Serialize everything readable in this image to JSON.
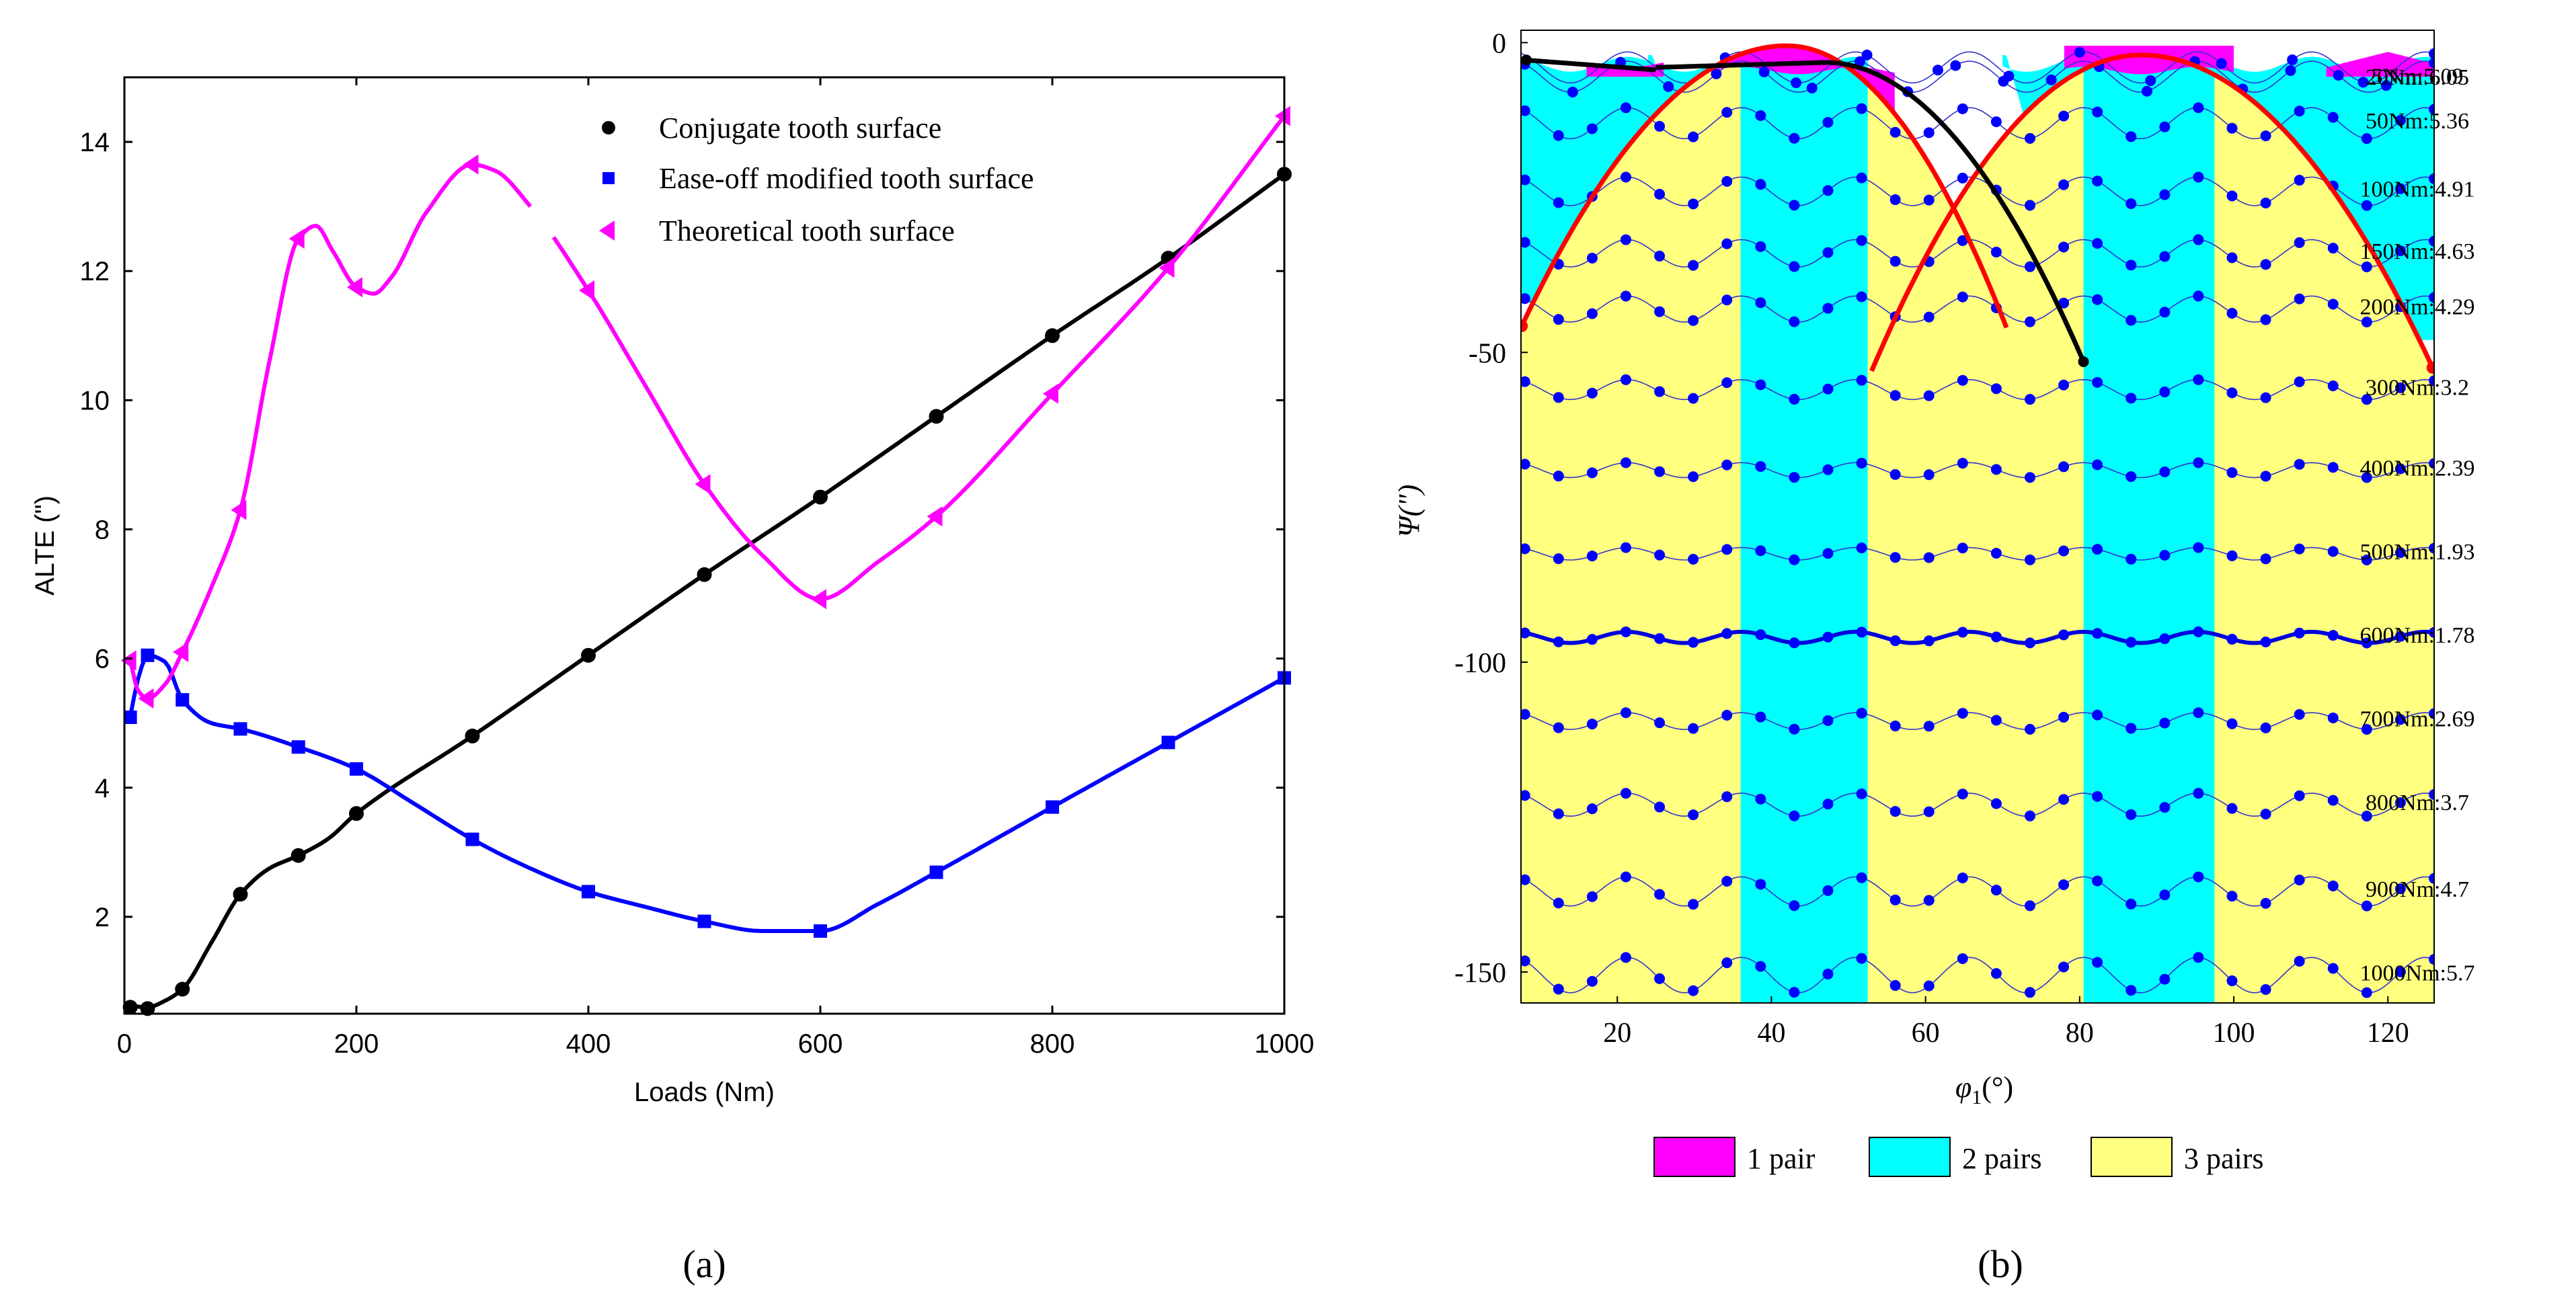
{
  "chart_data": [
    {
      "panel": "a",
      "type": "line",
      "caption": "(a)",
      "xlabel": "Loads (Nm)",
      "ylabel": "ALTE (\")",
      "xlim": [
        0,
        1000
      ],
      "ylim": [
        0.5,
        15
      ],
      "xticks": [
        0,
        200,
        400,
        600,
        800,
        1000
      ],
      "yticks": [
        2,
        4,
        6,
        8,
        10,
        12,
        14
      ],
      "legend_position": "top-right",
      "colors": {
        "conjugate": "#000000",
        "easeoff": "#0000ff",
        "theoretical": "#ff00ff"
      },
      "series": [
        {
          "name": "Conjugate tooth surface",
          "marker": "circle",
          "x": [
            5,
            20,
            50,
            100,
            150,
            200,
            300,
            400,
            500,
            600,
            700,
            800,
            900,
            1000
          ],
          "y": [
            0.6,
            0.58,
            0.88,
            2.35,
            2.95,
            3.6,
            4.8,
            6.05,
            7.3,
            8.5,
            9.75,
            11.0,
            12.2,
            13.5
          ],
          "curve_x": [
            5,
            20,
            35,
            50,
            75,
            100,
            125,
            150,
            175,
            200,
            300,
            400,
            500,
            600,
            700,
            800,
            900,
            1000
          ],
          "curve_y": [
            0.62,
            0.6,
            0.7,
            0.88,
            1.6,
            2.35,
            2.75,
            2.95,
            3.2,
            3.6,
            4.8,
            6.05,
            7.3,
            8.5,
            9.75,
            11.0,
            12.2,
            13.5
          ]
        },
        {
          "name": "Ease-off modified tooth surface",
          "marker": "square",
          "x": [
            5,
            20,
            50,
            100,
            150,
            200,
            300,
            400,
            500,
            600,
            700,
            800,
            900,
            1000
          ],
          "y": [
            5.09,
            6.05,
            5.36,
            4.91,
            4.63,
            4.29,
            3.2,
            2.39,
            1.93,
            1.78,
            2.69,
            3.7,
            4.7,
            5.7
          ],
          "curve_x": [
            5,
            12,
            20,
            35,
            50,
            75,
            100,
            150,
            200,
            250,
            300,
            350,
            400,
            450,
            500,
            550,
            600,
            650,
            700,
            800,
            900,
            1000
          ],
          "curve_y": [
            5.09,
            5.7,
            6.05,
            5.95,
            5.36,
            5.0,
            4.91,
            4.63,
            4.29,
            3.75,
            3.2,
            2.75,
            2.39,
            2.15,
            1.93,
            1.78,
            1.78,
            2.2,
            2.69,
            3.7,
            4.7,
            5.7
          ]
        },
        {
          "name": "Theoretical tooth surface",
          "marker": "triangle-left",
          "x": [
            5,
            20,
            50,
            100,
            150,
            200,
            300,
            400,
            500,
            600,
            700,
            800,
            900,
            1000
          ],
          "y": [
            5.97,
            5.38,
            6.1,
            8.3,
            12.5,
            11.75,
            13.65,
            11.7,
            8.7,
            6.92,
            8.2,
            10.1,
            12.05,
            14.4
          ],
          "curve_x": [
            5,
            12,
            20,
            35,
            50,
            75,
            100,
            125,
            150,
            165,
            180,
            200,
            215,
            230,
            260,
            300,
            320,
            350,
            400,
            450,
            500,
            550,
            600,
            650,
            700,
            800,
            900,
            1000
          ],
          "curve_y": [
            5.97,
            5.5,
            5.38,
            5.6,
            6.1,
            7.1,
            8.3,
            10.6,
            12.5,
            12.7,
            12.3,
            11.75,
            11.65,
            11.9,
            12.9,
            13.65,
            13.55,
            13.0,
            11.7,
            10.2,
            8.7,
            7.6,
            6.92,
            7.5,
            8.2,
            10.1,
            12.05,
            14.4
          ],
          "gap_x": [
            350,
            370
          ]
        }
      ]
    },
    {
      "panel": "b",
      "type": "area",
      "caption": "(b)",
      "xlabel_var": "φ",
      "xlabel_sub": "1",
      "xlabel_unit": "(°)",
      "ylabel": "Ψ(\")",
      "xlim": [
        7.5,
        126
      ],
      "ylim": [
        -155,
        2
      ],
      "xticks": [
        20,
        40,
        60,
        80,
        100,
        120
      ],
      "yticks": [
        0,
        -50,
        -100,
        -150
      ],
      "legend_position": "bottom",
      "legend": [
        {
          "label": "1 pair",
          "color": "#ff00ff"
        },
        {
          "label": "2 pairs",
          "color": "#00ffff"
        },
        {
          "label": "3 pairs",
          "color": "#ffff80"
        }
      ],
      "contact_zones": [
        {
          "pairs": 2,
          "x": [
            7.5,
            36
          ]
        },
        {
          "pairs": 3,
          "x": [
            7.5,
            36
          ]
        },
        {
          "pairs": 2,
          "x": [
            36,
            52.5
          ]
        },
        {
          "pairs": 3,
          "x": [
            52.5,
            80.5
          ]
        },
        {
          "pairs": 2,
          "x": [
            80.5,
            97.5
          ]
        },
        {
          "pairs": 3,
          "x": [
            97.5,
            126
          ]
        }
      ],
      "load_curves": [
        {
          "label": "5Nm:5.09",
          "load": 5,
          "offset": -4.0,
          "amp": 2.5,
          "dots": 11
        },
        {
          "label": "20Nm:6.05",
          "load": 20,
          "offset": -5.5,
          "amp": 2.5,
          "dots": 20
        },
        {
          "label": "50Nm:5.36",
          "load": 50,
          "offset": -13.0,
          "amp": 2.5,
          "dots": 28
        },
        {
          "label": "100Nm:4.91",
          "load": 100,
          "offset": -24.0,
          "amp": 2.3,
          "dots": 28
        },
        {
          "label": "150Nm:4.63",
          "load": 150,
          "offset": -34.0,
          "amp": 2.2,
          "dots": 28
        },
        {
          "label": "200Nm:4.29",
          "load": 200,
          "offset": -43.0,
          "amp": 2.1,
          "dots": 28
        },
        {
          "label": "300Nm:3.2",
          "load": 300,
          "offset": -56.0,
          "amp": 1.6,
          "dots": 28
        },
        {
          "label": "400Nm:2.39",
          "load": 400,
          "offset": -69.0,
          "amp": 1.2,
          "dots": 28
        },
        {
          "label": "500Nm:1.93",
          "load": 500,
          "offset": -82.5,
          "amp": 1.0,
          "dots": 28
        },
        {
          "label": "600Nm:1.78",
          "load": 600,
          "offset": -96.0,
          "amp": 0.9,
          "dots": 28,
          "highlight": true
        },
        {
          "label": "700Nm:2.69",
          "load": 700,
          "offset": -109.5,
          "amp": 1.35,
          "dots": 28
        },
        {
          "label": "800Nm:3.7",
          "load": 800,
          "offset": -123.0,
          "amp": 1.85,
          "dots": 28
        },
        {
          "label": "900Nm:4.7",
          "load": 900,
          "offset": -137.0,
          "amp": 2.35,
          "dots": 28
        },
        {
          "label": "1000Nm:5.7",
          "load": 1000,
          "offset": -150.5,
          "amp": 2.85,
          "dots": 28
        }
      ],
      "red_arcs": [
        {
          "x": [
            7.5,
            42,
            70.5
          ]
        },
        {
          "x": [
            53,
            88,
            126
          ]
        }
      ],
      "black_arcs": [
        {
          "x": [
            25,
            47,
            80.5
          ]
        },
        {
          "x": [
            8,
            15,
            25
          ]
        }
      ],
      "colors": {
        "one_pair": "#ff00ff",
        "two_pairs": "#00ffff",
        "three_pairs": "#ffff80",
        "dots": "#0000ff",
        "thin_curves": "#3333cc",
        "highlight": "#0000dd",
        "red": "#ff0000",
        "black": "#000000"
      }
    }
  ]
}
